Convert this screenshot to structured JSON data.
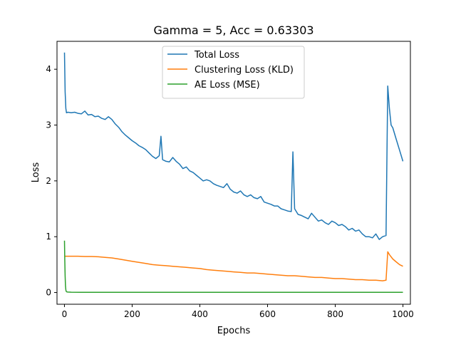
{
  "chart_data": {
    "type": "line",
    "title": "Gamma = 5, Acc = 0.63303",
    "xlabel": "Epochs",
    "ylabel": "Loss",
    "xlim": [
      -22,
      1022
    ],
    "ylim": [
      -0.21,
      4.5
    ],
    "xticks": [
      0,
      200,
      400,
      600,
      800,
      1000
    ],
    "yticks": [
      0,
      1,
      2,
      3,
      4
    ],
    "grid": false,
    "legend_position": "upper-center",
    "series": [
      {
        "name": "Total Loss",
        "color": "#1f77b4",
        "x": [
          0,
          2,
          4,
          6,
          10,
          20,
          30,
          40,
          50,
          60,
          70,
          80,
          90,
          100,
          110,
          120,
          130,
          140,
          150,
          160,
          170,
          180,
          190,
          200,
          210,
          220,
          230,
          240,
          250,
          260,
          270,
          280,
          285,
          290,
          300,
          310,
          320,
          330,
          340,
          350,
          360,
          370,
          380,
          390,
          400,
          410,
          420,
          430,
          440,
          450,
          460,
          470,
          480,
          490,
          500,
          510,
          520,
          530,
          540,
          550,
          560,
          570,
          580,
          590,
          600,
          610,
          620,
          630,
          640,
          650,
          660,
          670,
          675,
          680,
          690,
          700,
          710,
          720,
          730,
          740,
          750,
          760,
          770,
          780,
          790,
          800,
          810,
          820,
          830,
          840,
          850,
          860,
          870,
          880,
          890,
          900,
          910,
          920,
          930,
          940,
          950,
          955,
          960,
          965,
          970,
          980,
          990,
          1000
        ],
        "y": [
          4.3,
          3.6,
          3.3,
          3.22,
          3.23,
          3.22,
          3.23,
          3.21,
          3.2,
          3.25,
          3.18,
          3.19,
          3.15,
          3.16,
          3.12,
          3.1,
          3.15,
          3.1,
          3.02,
          2.96,
          2.88,
          2.82,
          2.77,
          2.72,
          2.68,
          2.63,
          2.6,
          2.56,
          2.5,
          2.44,
          2.4,
          2.45,
          2.8,
          2.38,
          2.35,
          2.34,
          2.42,
          2.35,
          2.3,
          2.22,
          2.25,
          2.18,
          2.15,
          2.1,
          2.05,
          2.0,
          2.02,
          2.0,
          1.95,
          1.92,
          1.9,
          1.88,
          1.95,
          1.85,
          1.8,
          1.78,
          1.82,
          1.75,
          1.72,
          1.75,
          1.7,
          1.68,
          1.72,
          1.62,
          1.6,
          1.58,
          1.55,
          1.55,
          1.5,
          1.48,
          1.46,
          1.45,
          2.52,
          1.5,
          1.4,
          1.38,
          1.35,
          1.32,
          1.42,
          1.35,
          1.28,
          1.3,
          1.25,
          1.22,
          1.28,
          1.25,
          1.2,
          1.22,
          1.18,
          1.12,
          1.15,
          1.1,
          1.12,
          1.05,
          1.0,
          1.0,
          0.98,
          1.05,
          0.95,
          1.0,
          1.02,
          3.7,
          3.3,
          3.0,
          2.95,
          2.75,
          2.55,
          2.35
        ]
      },
      {
        "name": "Clustering Loss (KLD)",
        "color": "#ff7f0e",
        "x": [
          0,
          20,
          40,
          60,
          80,
          100,
          120,
          140,
          160,
          180,
          200,
          220,
          240,
          260,
          280,
          300,
          320,
          340,
          360,
          380,
          400,
          420,
          440,
          460,
          480,
          500,
          520,
          540,
          560,
          580,
          600,
          620,
          640,
          660,
          680,
          700,
          720,
          740,
          760,
          780,
          800,
          820,
          840,
          860,
          880,
          900,
          920,
          940,
          950,
          955,
          960,
          970,
          980,
          990,
          1000
        ],
        "y": [
          0.65,
          0.65,
          0.65,
          0.645,
          0.645,
          0.64,
          0.63,
          0.62,
          0.6,
          0.58,
          0.56,
          0.54,
          0.52,
          0.5,
          0.49,
          0.48,
          0.47,
          0.46,
          0.45,
          0.44,
          0.43,
          0.41,
          0.4,
          0.39,
          0.38,
          0.37,
          0.36,
          0.35,
          0.35,
          0.34,
          0.33,
          0.32,
          0.31,
          0.3,
          0.3,
          0.29,
          0.28,
          0.27,
          0.27,
          0.26,
          0.25,
          0.25,
          0.24,
          0.23,
          0.23,
          0.22,
          0.22,
          0.21,
          0.22,
          0.73,
          0.68,
          0.6,
          0.55,
          0.5,
          0.47
        ]
      },
      {
        "name": "AE Loss (MSE)",
        "color": "#2ca02c",
        "x": [
          0,
          1,
          2,
          3,
          4,
          5,
          6,
          8,
          10,
          20,
          50,
          100,
          200,
          400,
          600,
          800,
          1000
        ],
        "y": [
          0.93,
          0.6,
          0.3,
          0.12,
          0.05,
          0.025,
          0.015,
          0.01,
          0.008,
          0.006,
          0.005,
          0.004,
          0.004,
          0.003,
          0.003,
          0.003,
          0.003
        ]
      }
    ]
  }
}
